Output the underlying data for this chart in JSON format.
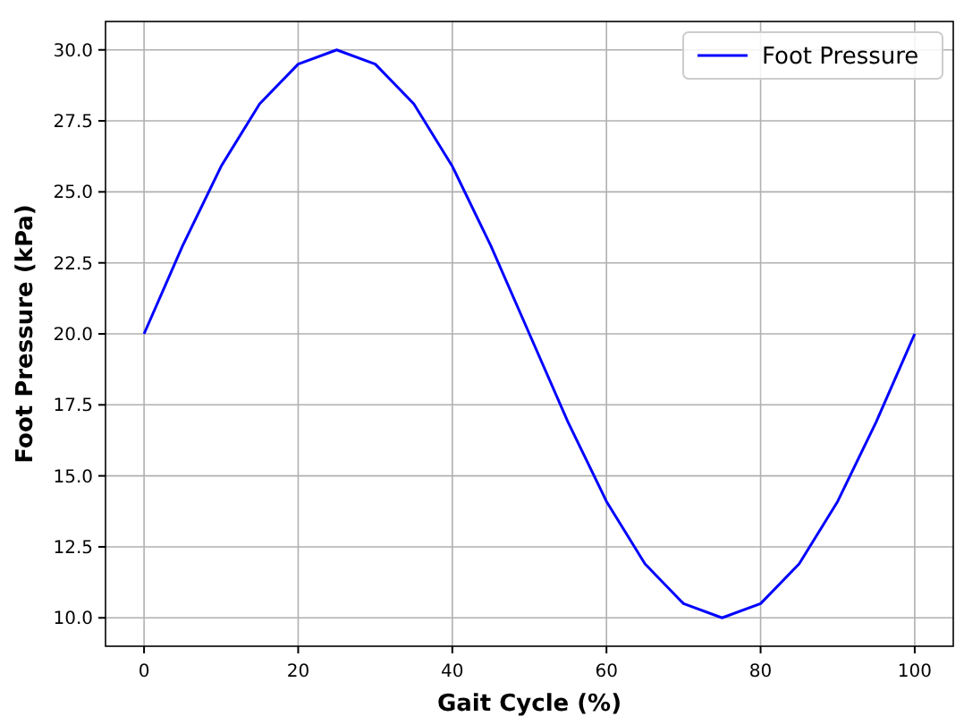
{
  "chart_data": {
    "type": "line",
    "xlabel": "Gait Cycle (%)",
    "ylabel": "Foot Pressure (kPa)",
    "x": [
      0,
      5,
      10,
      15,
      20,
      25,
      30,
      35,
      40,
      45,
      50,
      55,
      60,
      65,
      70,
      75,
      80,
      85,
      90,
      95,
      100
    ],
    "series": [
      {
        "name": "Foot Pressure",
        "color": "#0000ff",
        "values": [
          20,
          23.1,
          25.9,
          28.1,
          29.5,
          30,
          29.5,
          28.1,
          25.9,
          23.1,
          20,
          16.9,
          14.1,
          11.9,
          10.5,
          10,
          10.5,
          11.9,
          14.1,
          16.9,
          20
        ]
      }
    ],
    "xlim": [
      -5,
      105
    ],
    "ylim": [
      9,
      31
    ],
    "xticks": [
      0,
      20,
      40,
      60,
      80,
      100
    ],
    "yticks": [
      {
        "value": 10,
        "label": "10.0"
      },
      {
        "value": 12.5,
        "label": "12.5"
      },
      {
        "value": 15,
        "label": "15.0"
      },
      {
        "value": 17.5,
        "label": "17.5"
      },
      {
        "value": 20,
        "label": "20.0"
      },
      {
        "value": 22.5,
        "label": "22.5"
      },
      {
        "value": 25,
        "label": "25.0"
      },
      {
        "value": 27.5,
        "label": "27.5"
      },
      {
        "value": 30,
        "label": "30.0"
      }
    ],
    "grid": true,
    "legend": "top right",
    "line_style": "solid",
    "marker": "none"
  }
}
